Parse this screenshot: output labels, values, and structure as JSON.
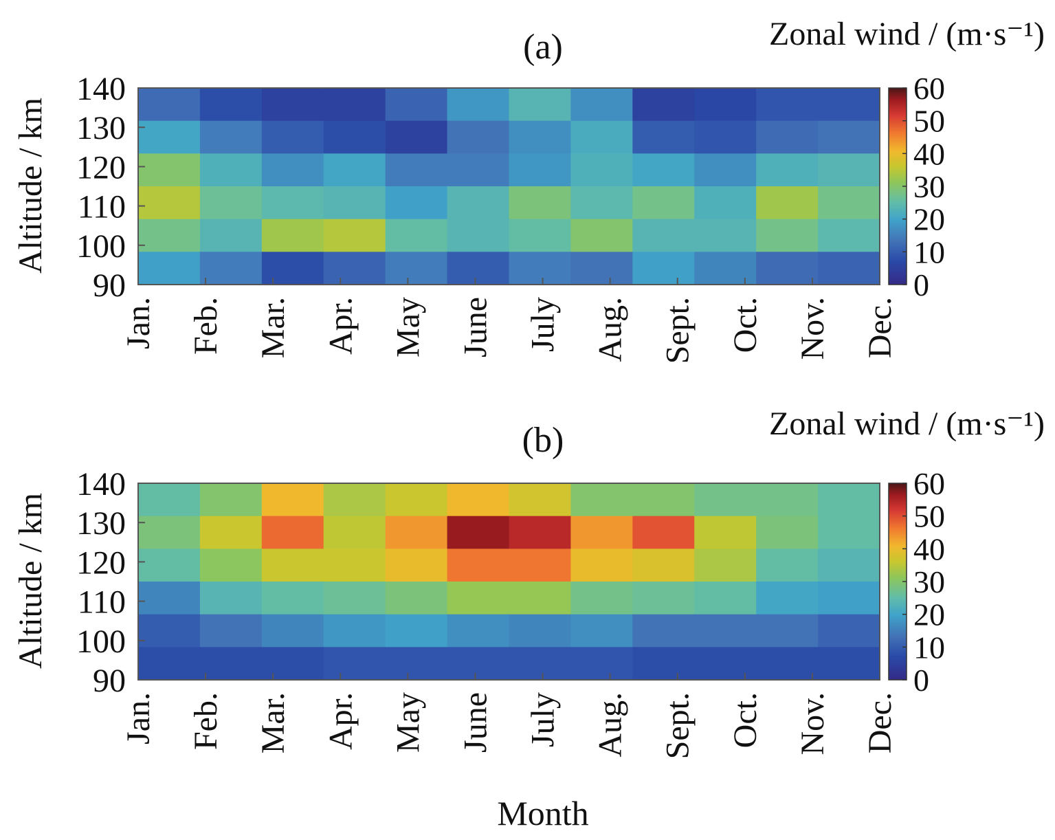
{
  "figure": {
    "xlabel": "Month"
  },
  "chart_data": [
    {
      "type": "heatmap",
      "panel_label": "(a)",
      "colorbar_title": "Zonal wind / (m·s⁻¹)",
      "ylabel": "Altitude / km",
      "x": [
        "Jan.",
        "Feb.",
        "Mar.",
        "Apr.",
        "May",
        "June",
        "July",
        "Aug.",
        "Sept.",
        "Oct.",
        "Nov.",
        "Dec."
      ],
      "y": [
        140,
        130,
        120,
        110,
        100,
        90
      ],
      "yticks": [
        "140",
        "130",
        "120",
        "110",
        "100",
        "90"
      ],
      "ylim": [
        90,
        140
      ],
      "clim": [
        0,
        60
      ],
      "colorbar_ticks": [
        "60",
        "50",
        "40",
        "30",
        "20",
        "10",
        "0"
      ],
      "values": [
        [
          10,
          6,
          4,
          4,
          9,
          15,
          20,
          14,
          4,
          5,
          7,
          7
        ],
        [
          17,
          12,
          8,
          6,
          4,
          11,
          14,
          18,
          8,
          7,
          10,
          11
        ],
        [
          26,
          19,
          14,
          17,
          12,
          12,
          15,
          19,
          17,
          14,
          19,
          20
        ],
        [
          31,
          23,
          21,
          20,
          16,
          20,
          25,
          21,
          24,
          19,
          29,
          24
        ],
        [
          24,
          20,
          29,
          31,
          22,
          20,
          22,
          26,
          20,
          20,
          24,
          21
        ],
        [
          16,
          12,
          6,
          9,
          12,
          8,
          12,
          11,
          16,
          13,
          10,
          9
        ]
      ]
    },
    {
      "type": "heatmap",
      "panel_label": "(b)",
      "colorbar_title": "Zonal wind / (m·s⁻¹)",
      "ylabel": "Altitude / km",
      "x": [
        "Jan.",
        "Feb.",
        "Mar.",
        "Apr.",
        "May",
        "June",
        "July",
        "Aug.",
        "Sept.",
        "Oct.",
        "Nov.",
        "Dec."
      ],
      "y": [
        140,
        130,
        120,
        110,
        100,
        90
      ],
      "yticks": [
        "140",
        "130",
        "120",
        "110",
        "100",
        "90"
      ],
      "ylim": [
        90,
        140
      ],
      "clim": [
        0,
        60
      ],
      "colorbar_ticks": [
        "60",
        "50",
        "40",
        "30",
        "20",
        "10",
        "0"
      ],
      "values": [
        [
          22,
          26,
          38,
          30,
          33,
          38,
          34,
          26,
          26,
          24,
          24,
          22
        ],
        [
          25,
          33,
          45,
          32,
          41,
          55,
          52,
          41,
          47,
          32,
          25,
          22
        ],
        [
          22,
          27,
          33,
          33,
          37,
          44,
          44,
          37,
          35,
          30,
          22,
          20
        ],
        [
          13,
          20,
          22,
          23,
          25,
          28,
          28,
          24,
          23,
          22,
          17,
          16
        ],
        [
          8,
          11,
          13,
          15,
          16,
          14,
          13,
          14,
          11,
          11,
          11,
          9
        ],
        [
          6,
          6,
          6,
          7,
          7,
          7,
          7,
          7,
          6,
          6,
          6,
          6
        ]
      ]
    }
  ],
  "colors": {
    "colormap": [
      "#352a87",
      "#2a4aa8",
      "#4272b6",
      "#40a3c9",
      "#62bda8",
      "#8ec65a",
      "#c7c72f",
      "#f1b82d",
      "#f07a30",
      "#d73a33",
      "#9e1b20",
      "#4a1717"
    ]
  }
}
